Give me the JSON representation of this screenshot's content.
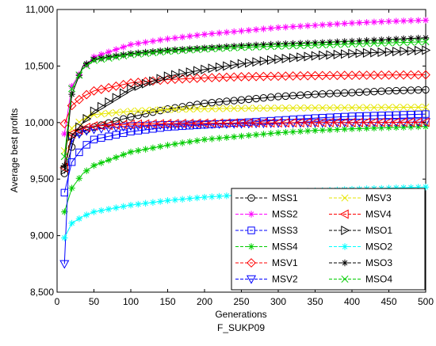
{
  "chart_data": {
    "type": "line",
    "title": "",
    "xlabel": "Generations",
    "ylabel": "Average best profits",
    "subtitle_below": "F_SUKP09",
    "xlim": [
      0,
      500
    ],
    "ylim": [
      8500,
      11000
    ],
    "x_ticks": [
      "0",
      "50",
      "100",
      "150",
      "200",
      "250",
      "300",
      "350",
      "400",
      "450",
      "500"
    ],
    "y_ticks": [
      "8,500",
      "9,000",
      "9,500",
      "10,000",
      "10,500",
      "11,000"
    ],
    "grid": false,
    "legend_position": "bottom-right",
    "series": [
      {
        "name": "MSS1",
        "color": "#000000",
        "marker": "circle",
        "points": [
          [
            10,
            9550
          ],
          [
            25,
            9900
          ],
          [
            50,
            9960
          ],
          [
            100,
            10050
          ],
          [
            150,
            10120
          ],
          [
            200,
            10170
          ],
          [
            250,
            10200
          ],
          [
            300,
            10230
          ],
          [
            350,
            10250
          ],
          [
            400,
            10265
          ],
          [
            450,
            10280
          ],
          [
            500,
            10290
          ]
        ]
      },
      {
        "name": "MSS2",
        "color": "#ff00ff",
        "marker": "star",
        "points": [
          [
            10,
            9900
          ],
          [
            20,
            10320
          ],
          [
            35,
            10480
          ],
          [
            50,
            10580
          ],
          [
            100,
            10690
          ],
          [
            150,
            10740
          ],
          [
            200,
            10780
          ],
          [
            250,
            10810
          ],
          [
            300,
            10840
          ],
          [
            350,
            10860
          ],
          [
            400,
            10880
          ],
          [
            450,
            10895
          ],
          [
            500,
            10905
          ]
        ]
      },
      {
        "name": "MSS3",
        "color": "#0000ff",
        "marker": "square",
        "points": [
          [
            10,
            9380
          ],
          [
            20,
            9650
          ],
          [
            35,
            9780
          ],
          [
            50,
            9850
          ],
          [
            100,
            9920
          ],
          [
            150,
            9960
          ],
          [
            200,
            9980
          ],
          [
            250,
            10000
          ],
          [
            300,
            10020
          ],
          [
            350,
            10040
          ],
          [
            400,
            10055
          ],
          [
            450,
            10065
          ],
          [
            500,
            10075
          ]
        ]
      },
      {
        "name": "MSS4",
        "color": "#00cc00",
        "marker": "star",
        "points": [
          [
            10,
            9210
          ],
          [
            20,
            9420
          ],
          [
            35,
            9550
          ],
          [
            50,
            9620
          ],
          [
            100,
            9740
          ],
          [
            150,
            9800
          ],
          [
            200,
            9850
          ],
          [
            250,
            9880
          ],
          [
            300,
            9910
          ],
          [
            350,
            9930
          ],
          [
            400,
            9945
          ],
          [
            450,
            9955
          ],
          [
            500,
            9965
          ]
        ]
      },
      {
        "name": "MSV1",
        "color": "#ff0000",
        "marker": "diamond",
        "points": [
          [
            10,
            9990
          ],
          [
            20,
            10150
          ],
          [
            35,
            10230
          ],
          [
            50,
            10280
          ],
          [
            100,
            10350
          ],
          [
            150,
            10380
          ],
          [
            200,
            10395
          ],
          [
            250,
            10405
          ],
          [
            300,
            10410
          ],
          [
            350,
            10415
          ],
          [
            400,
            10418
          ],
          [
            450,
            10420
          ],
          [
            500,
            10422
          ]
        ]
      },
      {
        "name": "MSV2",
        "color": "#0000ff",
        "marker": "triangle-down",
        "points": [
          [
            10,
            8750
          ],
          [
            15,
            9500
          ],
          [
            20,
            9860
          ],
          [
            35,
            9920
          ],
          [
            50,
            9940
          ],
          [
            100,
            9970
          ],
          [
            150,
            9980
          ],
          [
            200,
            9985
          ],
          [
            250,
            9990
          ],
          [
            300,
            9995
          ],
          [
            350,
            9998
          ],
          [
            400,
            10000
          ],
          [
            450,
            10002
          ],
          [
            500,
            10005
          ]
        ]
      },
      {
        "name": "MSV3",
        "color": "#e6e600",
        "marker": "x",
        "points": [
          [
            10,
            9750
          ],
          [
            20,
            9950
          ],
          [
            35,
            10030
          ],
          [
            50,
            10070
          ],
          [
            100,
            10100
          ],
          [
            150,
            10115
          ],
          [
            200,
            10122
          ],
          [
            250,
            10126
          ],
          [
            300,
            10128
          ],
          [
            350,
            10130
          ],
          [
            400,
            10132
          ],
          [
            450,
            10134
          ],
          [
            500,
            10136
          ]
        ]
      },
      {
        "name": "MSV4",
        "color": "#ff0000",
        "marker": "triangle-left",
        "points": [
          [
            10,
            9600
          ],
          [
            20,
            9900
          ],
          [
            35,
            9950
          ],
          [
            50,
            9970
          ],
          [
            100,
            9985
          ],
          [
            150,
            9990
          ],
          [
            200,
            9994
          ],
          [
            250,
            9996
          ],
          [
            300,
            9998
          ],
          [
            350,
            10000
          ],
          [
            400,
            10001
          ],
          [
            450,
            10002
          ],
          [
            500,
            10003
          ]
        ]
      },
      {
        "name": "MSO1",
        "color": "#000000",
        "marker": "triangle-right",
        "points": [
          [
            10,
            9580
          ],
          [
            20,
            9880
          ],
          [
            35,
            10000
          ],
          [
            50,
            10100
          ],
          [
            100,
            10300
          ],
          [
            150,
            10410
          ],
          [
            200,
            10470
          ],
          [
            250,
            10520
          ],
          [
            300,
            10560
          ],
          [
            350,
            10590
          ],
          [
            400,
            10610
          ],
          [
            450,
            10625
          ],
          [
            500,
            10640
          ]
        ]
      },
      {
        "name": "MSO2",
        "color": "#00ffff",
        "marker": "star",
        "points": [
          [
            10,
            8980
          ],
          [
            20,
            9110
          ],
          [
            35,
            9170
          ],
          [
            50,
            9210
          ],
          [
            100,
            9270
          ],
          [
            150,
            9310
          ],
          [
            200,
            9340
          ],
          [
            250,
            9360
          ],
          [
            300,
            9380
          ],
          [
            350,
            9395
          ],
          [
            400,
            9410
          ],
          [
            450,
            9420
          ],
          [
            500,
            9430
          ]
        ]
      },
      {
        "name": "MSO3",
        "color": "#000000",
        "marker": "star",
        "points": [
          [
            10,
            9620
          ],
          [
            20,
            10250
          ],
          [
            35,
            10500
          ],
          [
            50,
            10560
          ],
          [
            100,
            10610
          ],
          [
            150,
            10640
          ],
          [
            200,
            10660
          ],
          [
            250,
            10680
          ],
          [
            300,
            10695
          ],
          [
            350,
            10705
          ],
          [
            400,
            10720
          ],
          [
            450,
            10735
          ],
          [
            500,
            10750
          ]
        ]
      },
      {
        "name": "MSO4",
        "color": "#00cc00",
        "marker": "x",
        "points": [
          [
            10,
            9700
          ],
          [
            20,
            10300
          ],
          [
            35,
            10480
          ],
          [
            50,
            10550
          ],
          [
            100,
            10600
          ],
          [
            150,
            10630
          ],
          [
            200,
            10650
          ],
          [
            250,
            10665
          ],
          [
            300,
            10675
          ],
          [
            350,
            10685
          ],
          [
            400,
            10695
          ],
          [
            450,
            10705
          ],
          [
            500,
            10715
          ]
        ]
      }
    ]
  }
}
